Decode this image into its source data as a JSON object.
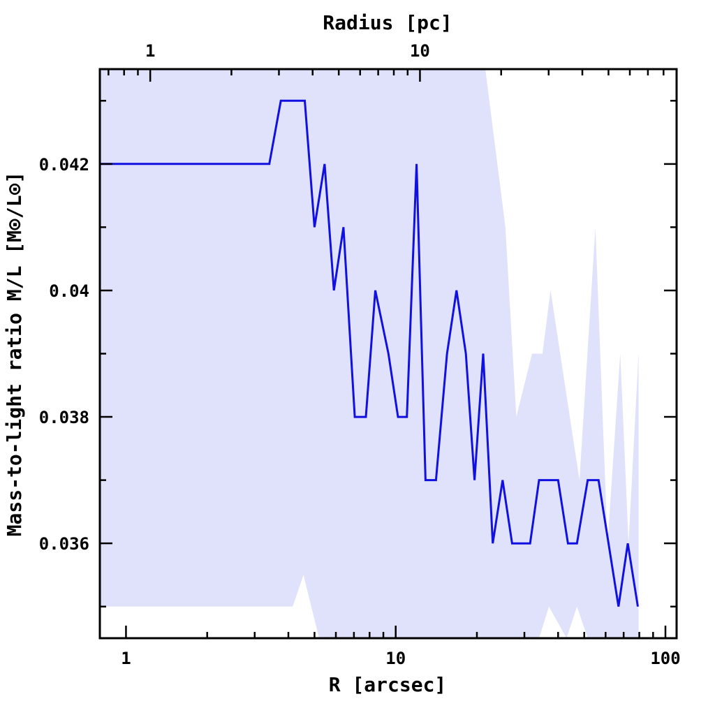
{
  "chart_data": {
    "type": "line",
    "xlabel": "R [arcsec]",
    "top_xlabel": "Radius [pc]",
    "ylabel": "Mass-to-light ratio M/L [M⊙/L⊙]",
    "x_scale": "log",
    "xlim": [
      0.8,
      110
    ],
    "ylim": [
      0.0345,
      0.0435
    ],
    "x_ticks": [
      {
        "value": 1,
        "label": "1"
      },
      {
        "value": 10,
        "label": "10"
      },
      {
        "value": 100,
        "label": "100"
      }
    ],
    "top_ticks": [
      {
        "value": 1.23,
        "label": "1"
      },
      {
        "value": 12.3,
        "label": "10"
      }
    ],
    "y_ticks": [
      {
        "value": 0.036,
        "label": "0.036"
      },
      {
        "value": 0.038,
        "label": "0.038"
      },
      {
        "value": 0.04,
        "label": "0.04"
      },
      {
        "value": 0.042,
        "label": "0.042"
      }
    ],
    "grid": false,
    "colors": {
      "line": "#1010e0",
      "band": "#e0e2fb",
      "axis": "#000000"
    },
    "series": [
      {
        "values": [
          [
            0.8,
            0.042
          ],
          [
            3.4,
            0.042
          ],
          [
            3.75,
            0.043
          ],
          [
            4.6,
            0.043
          ],
          [
            5.0,
            0.041
          ],
          [
            5.45,
            0.042
          ],
          [
            5.9,
            0.04
          ],
          [
            6.4,
            0.041
          ],
          [
            7.05,
            0.038
          ],
          [
            7.75,
            0.038
          ],
          [
            8.4,
            0.04
          ],
          [
            9.4,
            0.039
          ],
          [
            10.2,
            0.038
          ],
          [
            11.0,
            0.038
          ],
          [
            11.95,
            0.042
          ],
          [
            12.9,
            0.037
          ],
          [
            14.1,
            0.037
          ],
          [
            15.5,
            0.039
          ],
          [
            16.8,
            0.04
          ],
          [
            18.2,
            0.039
          ],
          [
            19.6,
            0.037
          ],
          [
            21.1,
            0.039
          ],
          [
            22.9,
            0.036
          ],
          [
            24.9,
            0.037
          ],
          [
            27.0,
            0.036
          ],
          [
            31.5,
            0.036
          ],
          [
            34.0,
            0.037
          ],
          [
            40.0,
            0.037
          ],
          [
            43.5,
            0.036
          ],
          [
            47.0,
            0.036
          ],
          [
            51.5,
            0.037
          ],
          [
            56.5,
            0.037
          ],
          [
            67.0,
            0.035
          ],
          [
            72.5,
            0.036
          ],
          [
            79.0,
            0.035
          ]
        ]
      }
    ],
    "band_upper": [
      [
        0.8,
        0.0435
      ],
      [
        21.5,
        0.0435
      ],
      [
        25.5,
        0.041
      ],
      [
        28.0,
        0.038
      ],
      [
        32.0,
        0.039
      ],
      [
        35.0,
        0.039
      ],
      [
        37.5,
        0.04
      ],
      [
        48.0,
        0.037
      ],
      [
        55.0,
        0.041
      ],
      [
        61.0,
        0.036
      ],
      [
        68.0,
        0.039
      ],
      [
        73.0,
        0.036
      ],
      [
        79.5,
        0.039
      ]
    ],
    "band_lower": [
      [
        79.5,
        0.0345
      ],
      [
        51.5,
        0.0345
      ],
      [
        47.0,
        0.035
      ],
      [
        43.0,
        0.0345
      ],
      [
        37.0,
        0.035
      ],
      [
        34.0,
        0.0345
      ],
      [
        5.2,
        0.0345
      ],
      [
        4.55,
        0.0355
      ],
      [
        4.15,
        0.035
      ],
      [
        0.8,
        0.035
      ]
    ]
  }
}
